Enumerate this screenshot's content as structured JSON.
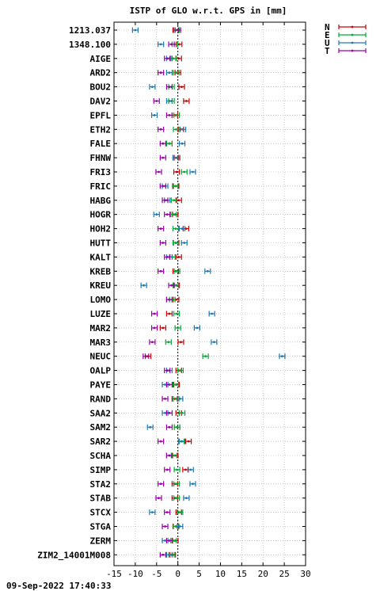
{
  "chart_data": {
    "type": "scatter",
    "title": "ISTP of GLO w.r.t. GPS in [mm]",
    "xlim": [
      -15,
      30
    ],
    "x_ticks": [
      -15,
      -10,
      -5,
      0,
      5,
      10,
      15,
      20,
      25,
      30
    ],
    "grid": true,
    "legend_position": "top-right",
    "categories": [
      "1213.037",
      "1348.100",
      "AIGE",
      "ARD2",
      "BOU2",
      "DAV2",
      "EPFL",
      "ETH2",
      "FALE",
      "FHNW",
      "FRI3",
      "FRIC",
      "HABG",
      "HOGR",
      "HOH2",
      "HUTT",
      "KALT",
      "KREB",
      "KREU",
      "LOMO",
      "LUZE",
      "MAR2",
      "MAR3",
      "NEUC",
      "OALP",
      "PAYE",
      "RAND",
      "SAA2",
      "SAM2",
      "SAR2",
      "SCHA",
      "SIMP",
      "STA2",
      "STAB",
      "STCX",
      "STGA",
      "ZERM",
      "ZIM2_14001M008"
    ],
    "series": [
      {
        "name": "N",
        "color": "#cc0000",
        "values": [
          -0.5,
          0.3,
          0.2,
          0,
          0.9,
          2.0,
          -0.7,
          0.7,
          -2,
          -0.2,
          -0.3,
          -0.4,
          0.2,
          -0.6,
          1.9,
          -0.4,
          0.2,
          -0.5,
          -0.3,
          -0.4,
          -2,
          -3.5,
          0.7,
          -7,
          0.2,
          -0.3,
          -0.7,
          0.2,
          -0.2,
          2.5,
          -0.6,
          1.8,
          -0.7,
          -0.7,
          0.2,
          -0.5,
          -0.6,
          -1.2
        ]
      },
      {
        "name": "E",
        "color": "#00aa33",
        "values": [
          -0.3,
          -0.7,
          -1.0,
          -0.4,
          -1.5,
          -1.5,
          -0.3,
          -0.4,
          -2,
          -0.5,
          1.5,
          -0.6,
          -0.9,
          -1.0,
          -0.5,
          -0.5,
          -1.3,
          -0.2,
          -0.5,
          -1.3,
          -0.3,
          0,
          -2.2,
          6.5,
          0.6,
          -0.5,
          -0.4,
          1.0,
          -0.2,
          0.8,
          -0.9,
          -0.2,
          -0.3,
          -0.3,
          0.5,
          -0.4,
          -1.0,
          -1.5
        ]
      },
      {
        "name": "U",
        "color": "#1f77b4",
        "values": [
          -10,
          -4,
          -2,
          -2,
          -6,
          -2,
          -5.5,
          1.2,
          1.0,
          -0.5,
          3.5,
          -3,
          -2.5,
          -5,
          1.0,
          1.5,
          -2,
          7,
          -8,
          -2,
          8,
          4.5,
          8.5,
          24.5,
          -2,
          -3,
          0.5,
          -3,
          -6.5,
          1.0,
          -2,
          3,
          3.5,
          2,
          -6,
          0.5,
          -3,
          -2
        ]
      },
      {
        "name": "T",
        "color": "#9900aa",
        "values": [
          0,
          -1.5,
          -2.5,
          -4,
          -2,
          -5,
          -2,
          -4,
          -3.5,
          -3.5,
          -4.5,
          -3.5,
          -3,
          -2.5,
          -4,
          -3.5,
          -2.5,
          -4,
          -1.5,
          -2,
          -5.5,
          -5.5,
          -6,
          -7.5,
          -2.5,
          -2,
          -3,
          -2,
          -2,
          -4,
          -2,
          -2.5,
          -4,
          -4.5,
          -2.5,
          -3,
          -2,
          -3.5
        ]
      }
    ]
  },
  "timestamp": "09-Sep-2022 17:40:33"
}
